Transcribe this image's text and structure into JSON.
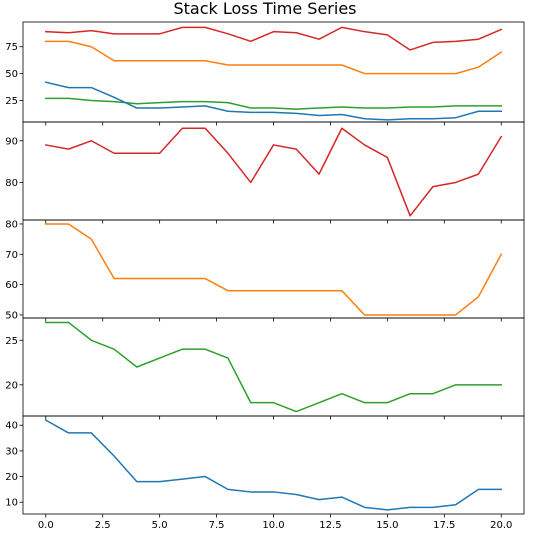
{
  "chart_data": {
    "type": "line",
    "title": "Stack Loss Time Series",
    "x": [
      0,
      1,
      2,
      3,
      4,
      5,
      6,
      7,
      8,
      9,
      10,
      11,
      12,
      13,
      14,
      15,
      16,
      17,
      18,
      19,
      20
    ],
    "x_ticks": [
      0.0,
      2.5,
      5.0,
      7.5,
      10.0,
      12.5,
      15.0,
      17.5,
      20.0
    ],
    "x_tick_labels": [
      "0.0",
      "2.5",
      "5.0",
      "7.5",
      "10.0",
      "12.5",
      "15.0",
      "17.5",
      "20.0"
    ],
    "xlim": [
      -1,
      21
    ],
    "series": [
      {
        "name": "",
        "color": "#d62728",
        "values": [
          89,
          88,
          90,
          87,
          87,
          87,
          93,
          93,
          87,
          80,
          89,
          88,
          82,
          93,
          89,
          86,
          72,
          79,
          80,
          82,
          91
        ]
      },
      {
        "name": "",
        "color": "#ff7f0e",
        "values": [
          80,
          80,
          75,
          62,
          62,
          62,
          62,
          62,
          58,
          58,
          58,
          58,
          58,
          58,
          50,
          50,
          50,
          50,
          50,
          56,
          70
        ]
      },
      {
        "name": "",
        "color": "#2ca02c",
        "values": [
          27,
          27,
          25,
          24,
          22,
          23,
          24,
          24,
          23,
          18,
          18,
          17,
          18,
          19,
          18,
          18,
          19,
          19,
          20,
          20,
          20
        ]
      },
      {
        "name": "",
        "color": "#1f77b4",
        "values": [
          42,
          37,
          37,
          28,
          18,
          18,
          19,
          20,
          15,
          14,
          14,
          13,
          11,
          12,
          8,
          7,
          8,
          8,
          9,
          15,
          15
        ]
      }
    ],
    "panels": [
      {
        "series": [
          0,
          1,
          2,
          3
        ],
        "ylim": [
          5,
          98
        ],
        "yticks": [
          25,
          50,
          75
        ],
        "ytick_labels": [
          "25",
          "50",
          "75"
        ],
        "show_x_ticks": false
      },
      {
        "series": [
          0
        ],
        "ylim": [
          71,
          94.5
        ],
        "yticks": [
          80,
          90
        ],
        "ytick_labels": [
          "80",
          "90"
        ],
        "show_x_ticks": false
      },
      {
        "series": [
          1
        ],
        "ylim": [
          49,
          81.3
        ],
        "yticks": [
          50,
          60,
          70,
          80
        ],
        "ytick_labels": [
          "50",
          "60",
          "70",
          "80"
        ],
        "show_x_ticks": false
      },
      {
        "series": [
          2
        ],
        "ylim": [
          16.5,
          27.5
        ],
        "yticks": [
          20,
          25
        ],
        "ytick_labels": [
          "20",
          "25"
        ],
        "show_x_ticks": false
      },
      {
        "series": [
          3
        ],
        "ylim": [
          5.4,
          43.6
        ],
        "yticks": [
          10,
          20,
          30,
          40
        ],
        "ytick_labels": [
          "10",
          "20",
          "30",
          "40"
        ],
        "show_x_ticks": true
      }
    ],
    "grid": false,
    "legend": "none"
  }
}
